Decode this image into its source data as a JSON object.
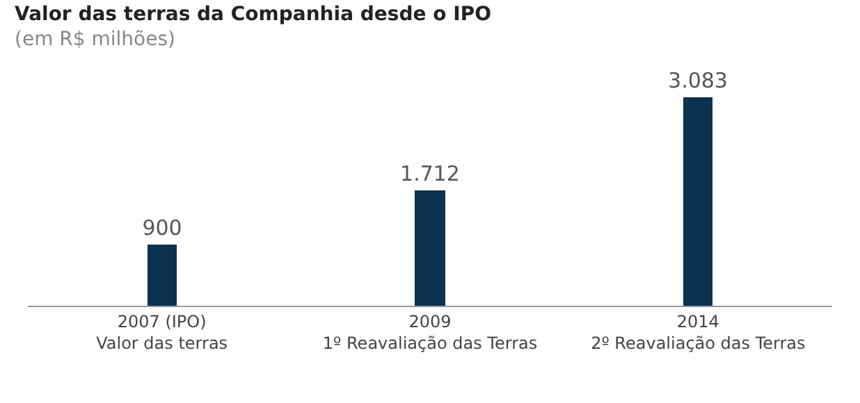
{
  "chart_data": {
    "type": "bar",
    "title": "Valor das terras da Companhia desde o IPO",
    "subtitle": "(em R$ milhões)",
    "categories": [
      "2007 (IPO)\nValor das terras",
      "2009\n1º Reavaliação das Terras",
      "2014\n2º Reavaliação das Terras"
    ],
    "values": [
      900,
      1712,
      3083
    ],
    "color": "#0b3150",
    "data_labels": true,
    "value_labels": [
      "900",
      "1.712",
      "3.083"
    ]
  }
}
